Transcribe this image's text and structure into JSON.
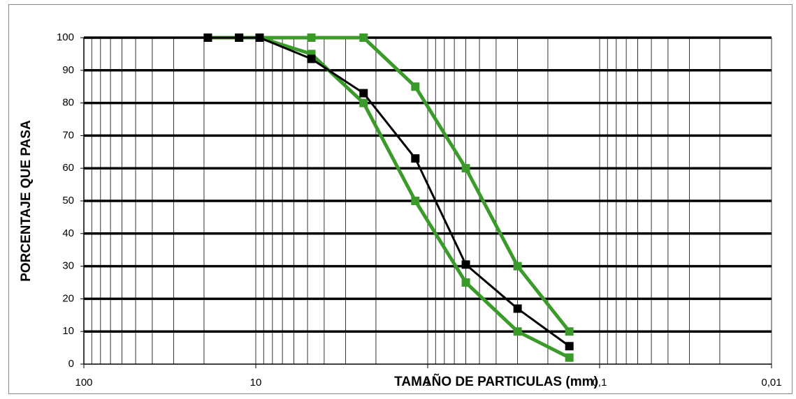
{
  "chart_data": {
    "type": "line",
    "x_label": "TAMAÑO DE PARTICULAS (mm)",
    "y_label": "PORCENTAJE QUE PASA",
    "x": [
      19,
      12.5,
      9.5,
      4.75,
      2.36,
      1.18,
      0.6,
      0.3,
      0.15
    ],
    "series": [
      {
        "color": "#3a9a2a",
        "values": [
          100,
          100,
          100,
          100,
          100,
          85,
          60,
          30,
          10
        ]
      },
      {
        "color": "#3a9a2a",
        "values": [
          100,
          100,
          100,
          95,
          80,
          50,
          25,
          10,
          2
        ]
      },
      {
        "color": "#000000",
        "values": [
          100,
          100,
          100,
          93.5,
          83,
          63,
          30.5,
          17,
          5.5
        ]
      }
    ],
    "xlim": [
      100,
      0.01
    ],
    "xticks": [
      100,
      10,
      1,
      {
        "value": 0.1,
        "label": "0,1"
      },
      {
        "value": 0.01,
        "label": "0,01"
      }
    ],
    "x_log": true,
    "minor_grid": true,
    "ylim": [
      0,
      100
    ],
    "yticks": [
      0,
      10,
      20,
      30,
      40,
      50,
      60,
      70,
      80,
      90,
      100
    ],
    "grid": true
  }
}
